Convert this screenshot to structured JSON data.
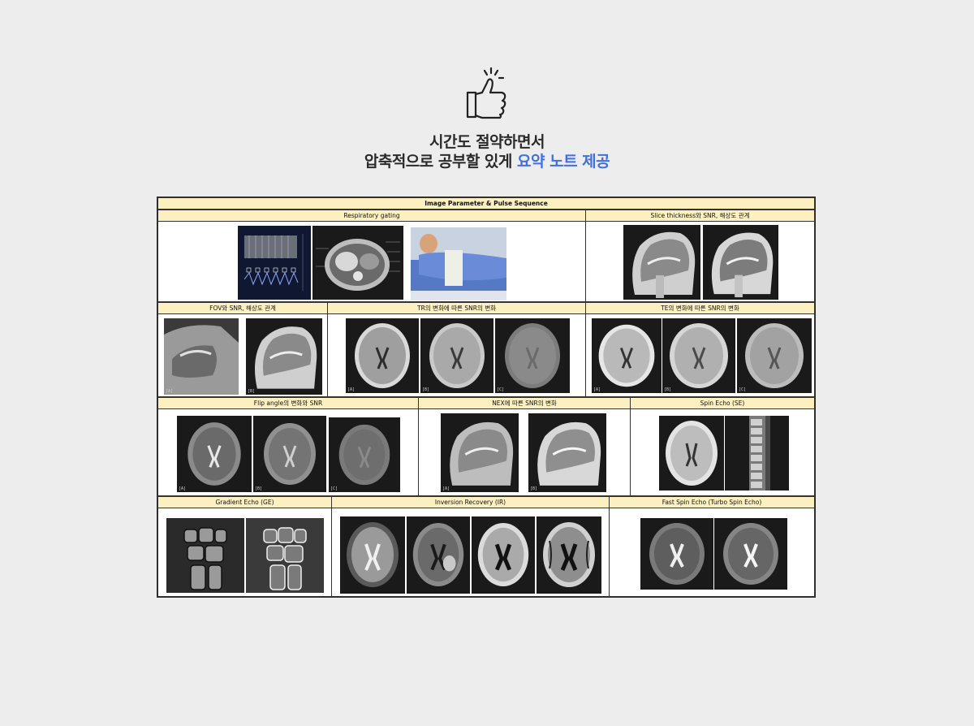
{
  "headline": {
    "line1": "시간도 절약하면서",
    "line2_prefix": "압축적으로 공부할 있게 ",
    "line2_accent": "요약 노트 제공",
    "accent_color": "#3f6fe0",
    "icon": "thumbs-up-icon"
  },
  "sheet": {
    "title": "Image Parameter & Pulse Sequence",
    "header_color": "#fdf0c0",
    "sections": {
      "respiratory": "Respiratory gating",
      "slice": "Slice thickness와 SNR, 해상도 관계",
      "fov": "FOV와 SNR, 해상도 관계",
      "tr": "TR의 변화에 따른 SNR의 변화",
      "te": "TE의 변화에 따른 SNR의 변화",
      "flip": "Flip angle의 변화와 SNR",
      "nex": "NEX에 따른 SNR의 변화",
      "se": "Spin Echo (SE)",
      "ge": "Gradient Echo (GE)",
      "ir": "Inversion Recovery (IR)",
      "fse": "Fast Spin Echo (Turbo Spin Echo)"
    },
    "image_labels": {
      "a": "[A]",
      "b": "[B]",
      "c": "[C]"
    }
  }
}
